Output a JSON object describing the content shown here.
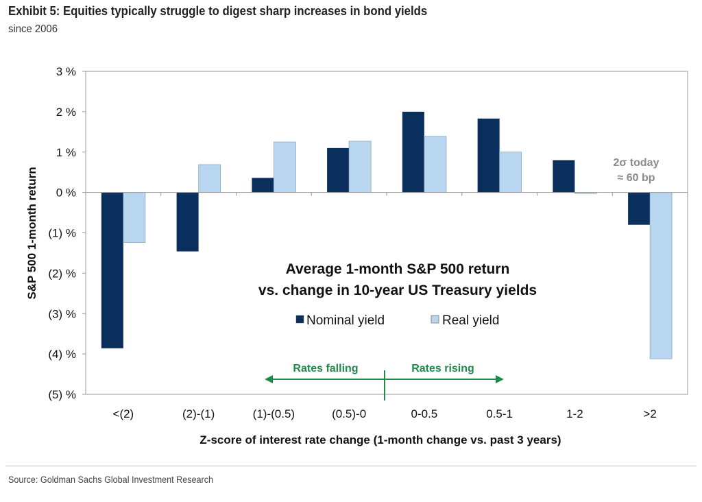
{
  "title": "Exhibit 5: Equities typically struggle to digest sharp increases in bond yields",
  "subtitle": "since 2006",
  "source": "Source: Goldman Sachs Global Investment Research",
  "chart_data": {
    "type": "bar",
    "title": "Average 1-month S&P 500 return vs. change in 10-year US Treasury yields",
    "title_lines": [
      "Average 1-month S&P 500 return",
      "vs. change in 10-year US Treasury yields"
    ],
    "xlabel": "Z-score of interest rate change (1-month change vs. past 3 years)",
    "ylabel": "S&P 500 1-month return",
    "categories": [
      "<(2)",
      "(2)-(1)",
      "(1)-(0.5)",
      "(0.5)-0",
      "0-0.5",
      "0.5-1",
      "1-2",
      ">2"
    ],
    "series": [
      {
        "name": "Nominal yield",
        "color": "#0b2f5c",
        "values": [
          -3.86,
          -1.46,
          0.36,
          1.1,
          2.0,
          1.83,
          0.8,
          -0.8
        ]
      },
      {
        "name": "Real yield",
        "color": "#b8d6f0",
        "values": [
          -1.24,
          0.69,
          1.25,
          1.27,
          1.39,
          1.0,
          -0.02,
          -4.12
        ]
      }
    ],
    "ylim": [
      -5,
      3
    ],
    "yticks": [
      3,
      2,
      1,
      0,
      -1,
      -2,
      -3,
      -4,
      -5
    ],
    "ytick_labels": [
      "3 %",
      "2 %",
      "1 %",
      "0 %",
      "(1) %",
      "(2) %",
      "(3) %",
      "(4) %",
      "(5) %"
    ],
    "grid": false,
    "legend_placement": "center",
    "annotations": {
      "today": [
        "2σ today",
        "≈ 60 bp"
      ],
      "rates_falling": "Rates falling",
      "rates_rising": "Rates rising",
      "arrow_color": "#1f8a4c",
      "annotation_color": "#8a8a8a"
    }
  }
}
